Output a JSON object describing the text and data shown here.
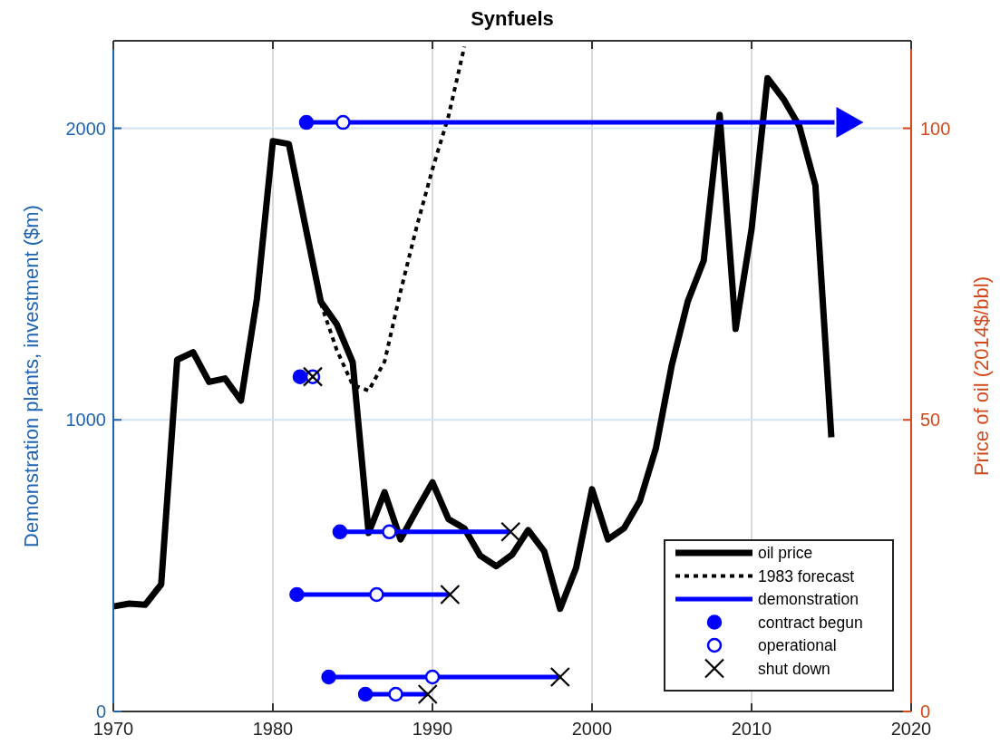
{
  "chart_data": {
    "type": "line",
    "title": "Synfuels",
    "ylabel": "Demonstration plants, investment ($m)",
    "y2label": "Price of oil (2014$/bbl)",
    "xlim": [
      1970,
      2020
    ],
    "xticks": [
      1970,
      1980,
      1990,
      2000,
      2010,
      2020
    ],
    "ylim": [
      0,
      2300
    ],
    "yticks": [
      0,
      1000,
      2000
    ],
    "y2lim": [
      0,
      115
    ],
    "y2ticks": [
      0,
      50,
      100
    ],
    "grid": true,
    "legend": "bottom right",
    "series": [
      {
        "name": "oil price",
        "axis": "y2",
        "color": "#000000",
        "line_style": "solid",
        "marker": "none",
        "x": [
          1970,
          1971,
          1972,
          1973,
          1974,
          1975,
          1976,
          1977,
          1978,
          1979,
          1980,
          1981,
          1982,
          1983,
          1984,
          1985,
          1986,
          1987,
          1988,
          1989,
          1990,
          1991,
          1992,
          1993,
          1994,
          1995,
          1996,
          1997,
          1998,
          1999,
          2000,
          2001,
          2002,
          2003,
          2004,
          2005,
          2006,
          2007,
          2008,
          2009,
          2010,
          2011,
          2012,
          2013,
          2014,
          2015
        ],
        "values": [
          18,
          18.5,
          18.3,
          21.8,
          60.3,
          61.6,
          56.5,
          57.1,
          53.3,
          70.8,
          97.8,
          97.3,
          83.7,
          70.3,
          66.4,
          59.9,
          30.6,
          37.6,
          29.5,
          34.5,
          39.3,
          33,
          31.4,
          26.7,
          24.9,
          26.9,
          31.1,
          27.5,
          17.6,
          24.6,
          38.1,
          29.5,
          31.4,
          36.1,
          45.1,
          59.4,
          70.3,
          77.3,
          102.3,
          65.6,
          82.7,
          108.6,
          105,
          100.3,
          90.2,
          47
        ]
      },
      {
        "name": "1983 forecast",
        "axis": "y2",
        "color": "#000000",
        "line_style": "dotted",
        "marker": "none",
        "x": [
          1983,
          1984,
          1985,
          1986,
          1987,
          1988,
          1989,
          1990,
          1991,
          1992
        ],
        "values": [
          70,
          62,
          56,
          55,
          60,
          72,
          83,
          93,
          102,
          114
        ]
      },
      {
        "name": "demonstration",
        "color": "#0000ff",
        "line_style": "solid",
        "marker": "none",
        "x": [
          1982.1,
          2015.2
        ],
        "values": [
          2020,
          2020
        ]
      },
      {
        "color": "#0000ff",
        "line_style": "solid",
        "marker": "none",
        "x": [
          1984.2,
          1994.9
        ],
        "values": [
          616,
          616
        ]
      },
      {
        "color": "#0000ff",
        "line_style": "solid",
        "marker": "none",
        "x": [
          1981.5,
          1991.1
        ],
        "values": [
          401,
          401
        ]
      },
      {
        "color": "#0000ff",
        "line_style": "solid",
        "marker": "none",
        "x": [
          1983.5,
          1998
        ],
        "values": [
          118,
          118
        ]
      },
      {
        "color": "#0000ff",
        "line_style": "solid",
        "marker": "none",
        "x": [
          1985.8,
          1989.7
        ],
        "values": [
          59,
          59
        ]
      },
      {
        "name": "contract begun",
        "type": "scatter",
        "color": "#0000ff",
        "marker": "circle",
        "x": [
          1982.1,
          1981.7,
          1984.2,
          1981.5,
          1983.5,
          1985.8
        ],
        "values": [
          2020,
          1148,
          616,
          401,
          118,
          59
        ]
      },
      {
        "name": "operational",
        "type": "scatter",
        "color": "#0000ff",
        "marker": "circle",
        "x": [
          1984.4,
          1982.5,
          1987.3,
          1986.5,
          1990,
          1987.7
        ],
        "values": [
          2020,
          1148,
          616,
          401,
          118,
          59
        ]
      },
      {
        "name": "shut down",
        "type": "scatter",
        "color": "#000000",
        "marker": "cross",
        "x": [
          1982.5,
          1994.9,
          1991.1,
          1998,
          1989.7
        ],
        "values": [
          1148,
          616,
          401,
          118,
          59
        ]
      }
    ]
  }
}
